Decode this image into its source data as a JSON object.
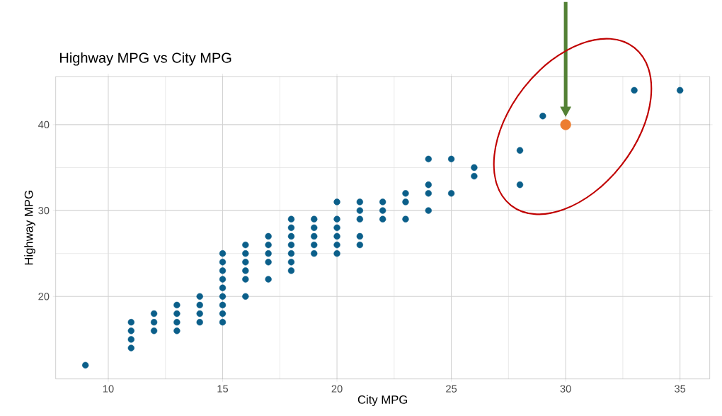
{
  "chart_data": {
    "type": "scatter",
    "title": "Highway MPG vs City MPG",
    "xlabel": "City MPG",
    "ylabel": "Highway MPG",
    "xlim": [
      7.7,
      36.3
    ],
    "ylim": [
      10.4,
      45.6
    ],
    "xticks": [
      10,
      15,
      20,
      25,
      30,
      35
    ],
    "yticks": [
      20,
      30,
      40
    ],
    "grid": true,
    "marker": "circle",
    "series": [
      {
        "color": "#0b5f8a",
        "x": [
          9,
          11,
          11,
          11,
          11,
          12,
          12,
          12,
          13,
          13,
          13,
          13,
          14,
          14,
          14,
          14,
          15,
          15,
          15,
          15,
          15,
          15,
          15,
          15,
          15,
          16,
          16,
          16,
          16,
          16,
          16,
          17,
          17,
          17,
          17,
          17,
          18,
          18,
          18,
          18,
          18,
          18,
          18,
          19,
          19,
          19,
          19,
          19,
          20,
          20,
          20,
          20,
          20,
          20,
          21,
          21,
          21,
          21,
          21,
          22,
          22,
          22,
          23,
          23,
          23,
          24,
          24,
          24,
          24,
          25,
          25,
          26,
          26,
          28,
          28,
          29,
          33,
          35
        ],
        "values": [
          12,
          14,
          15,
          16,
          17,
          16,
          17,
          18,
          16,
          17,
          18,
          19,
          17,
          18,
          19,
          20,
          17,
          18,
          19,
          20,
          21,
          22,
          23,
          24,
          25,
          20,
          22,
          23,
          24,
          25,
          26,
          22,
          24,
          25,
          26,
          27,
          23,
          24,
          25,
          26,
          27,
          28,
          29,
          25,
          26,
          27,
          28,
          29,
          25,
          26,
          27,
          28,
          29,
          31,
          26,
          27,
          29,
          30,
          31,
          29,
          30,
          31,
          29,
          31,
          32,
          30,
          32,
          33,
          36,
          32,
          36,
          34,
          35,
          33,
          37,
          41,
          44,
          44
        ]
      },
      {
        "color": "#ed7d31",
        "x": [
          30
        ],
        "values": [
          40
        ]
      }
    ]
  }
}
